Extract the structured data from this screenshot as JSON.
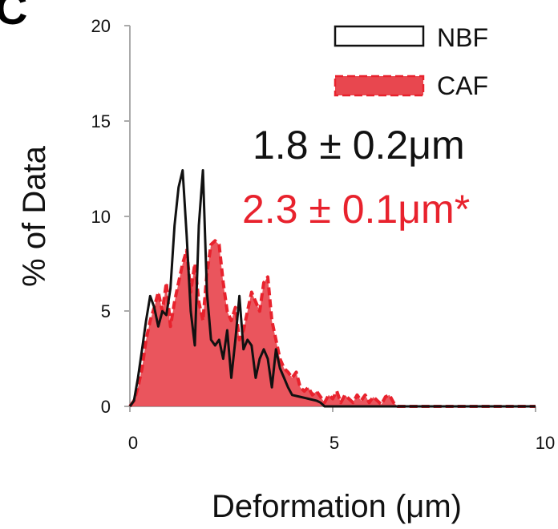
{
  "panel_label": "C",
  "colors": {
    "nbf": "#111111",
    "caf_fill": "#e8474f",
    "caf_line": "#e8222d",
    "axis": "#aaaaaa"
  },
  "chart_data": {
    "type": "area",
    "xlabel": "Deformation  (μm)",
    "ylabel": "% of Data",
    "xlim": [
      0,
      10
    ],
    "ylim": [
      0,
      20
    ],
    "xticks": [
      "0",
      "5",
      "10"
    ],
    "yticks": [
      "0",
      "5",
      "10",
      "15",
      "20"
    ],
    "legend": {
      "position": "top-right",
      "entries": [
        "NBF",
        "CAF"
      ]
    },
    "annotations": [
      {
        "text": "1.8 ± 0.2μm",
        "series": "NBF"
      },
      {
        "text": "2.3 ± 0.1μm*",
        "series": "CAF"
      }
    ],
    "series": [
      {
        "name": "NBF",
        "style": "line",
        "points": [
          [
            0,
            0
          ],
          [
            0.1,
            0.3
          ],
          [
            0.2,
            1.5
          ],
          [
            0.3,
            3
          ],
          [
            0.4,
            4.5
          ],
          [
            0.5,
            5.8
          ],
          [
            0.6,
            5.2
          ],
          [
            0.7,
            4.2
          ],
          [
            0.8,
            5
          ],
          [
            0.9,
            4.8
          ],
          [
            1.0,
            6.2
          ],
          [
            1.1,
            9.5
          ],
          [
            1.2,
            11.5
          ],
          [
            1.3,
            12.4
          ],
          [
            1.4,
            9
          ],
          [
            1.5,
            5
          ],
          [
            1.6,
            3.2
          ],
          [
            1.7,
            9.5
          ],
          [
            1.8,
            12.4
          ],
          [
            1.9,
            6
          ],
          [
            2.0,
            3.5
          ],
          [
            2.1,
            3.2
          ],
          [
            2.2,
            3.5
          ],
          [
            2.3,
            2.5
          ],
          [
            2.4,
            4
          ],
          [
            2.5,
            1.5
          ],
          [
            2.6,
            3.5
          ],
          [
            2.7,
            5.8
          ],
          [
            2.8,
            3
          ],
          [
            2.9,
            3.5
          ],
          [
            3.0,
            3.2
          ],
          [
            3.1,
            1.5
          ],
          [
            3.2,
            2.5
          ],
          [
            3.3,
            3
          ],
          [
            3.4,
            2.5
          ],
          [
            3.5,
            1
          ],
          [
            3.6,
            3
          ],
          [
            3.7,
            2
          ],
          [
            3.8,
            1.5
          ],
          [
            3.9,
            1
          ],
          [
            4.0,
            0.6
          ],
          [
            4.2,
            0.5
          ],
          [
            4.4,
            0.4
          ],
          [
            4.6,
            0.3
          ],
          [
            4.7,
            0.2
          ],
          [
            4.8,
            0
          ],
          [
            10,
            0
          ]
        ]
      },
      {
        "name": "CAF",
        "style": "area",
        "points": [
          [
            0,
            0
          ],
          [
            0.1,
            0.3
          ],
          [
            0.2,
            1
          ],
          [
            0.3,
            2
          ],
          [
            0.4,
            3.5
          ],
          [
            0.5,
            4.5
          ],
          [
            0.6,
            5.2
          ],
          [
            0.7,
            6
          ],
          [
            0.8,
            5
          ],
          [
            0.9,
            6.5
          ],
          [
            1.0,
            4.2
          ],
          [
            1.1,
            5.5
          ],
          [
            1.2,
            6.5
          ],
          [
            1.3,
            7.5
          ],
          [
            1.4,
            8.2
          ],
          [
            1.5,
            6
          ],
          [
            1.6,
            7.5
          ],
          [
            1.7,
            5.5
          ],
          [
            1.8,
            4.5
          ],
          [
            1.9,
            7
          ],
          [
            2.0,
            8.5
          ],
          [
            2.1,
            8.7
          ],
          [
            2.2,
            8.5
          ],
          [
            2.3,
            6.5
          ],
          [
            2.4,
            5
          ],
          [
            2.5,
            4.5
          ],
          [
            2.6,
            5.2
          ],
          [
            2.7,
            3.5
          ],
          [
            2.8,
            4
          ],
          [
            2.9,
            5
          ],
          [
            3.0,
            6
          ],
          [
            3.1,
            5.5
          ],
          [
            3.2,
            5
          ],
          [
            3.3,
            6.5
          ],
          [
            3.4,
            6.8
          ],
          [
            3.5,
            4.5
          ],
          [
            3.6,
            3.5
          ],
          [
            3.7,
            2.5
          ],
          [
            3.8,
            2
          ],
          [
            3.9,
            1.8
          ],
          [
            4.0,
            1.5
          ],
          [
            4.1,
            1.8
          ],
          [
            4.2,
            1
          ],
          [
            4.3,
            0.8
          ],
          [
            4.4,
            1
          ],
          [
            4.5,
            0.6
          ],
          [
            4.6,
            0.8
          ],
          [
            4.7,
            0.5
          ],
          [
            4.8,
            0.2
          ],
          [
            4.9,
            0.6
          ],
          [
            5.0,
            0.4
          ],
          [
            5.1,
            0.8
          ],
          [
            5.2,
            0.2
          ],
          [
            5.3,
            0.6
          ],
          [
            5.4,
            0.4
          ],
          [
            5.5,
            0.2
          ],
          [
            5.6,
            0.6
          ],
          [
            5.7,
            0.3
          ],
          [
            5.8,
            0.6
          ],
          [
            5.9,
            0.2
          ],
          [
            6.0,
            0.5
          ],
          [
            6.1,
            0.3
          ],
          [
            6.2,
            0.1
          ],
          [
            6.3,
            0.5
          ],
          [
            6.4,
            0.6
          ],
          [
            6.5,
            0.2
          ],
          [
            6.6,
            0
          ],
          [
            10,
            0
          ]
        ]
      }
    ]
  }
}
